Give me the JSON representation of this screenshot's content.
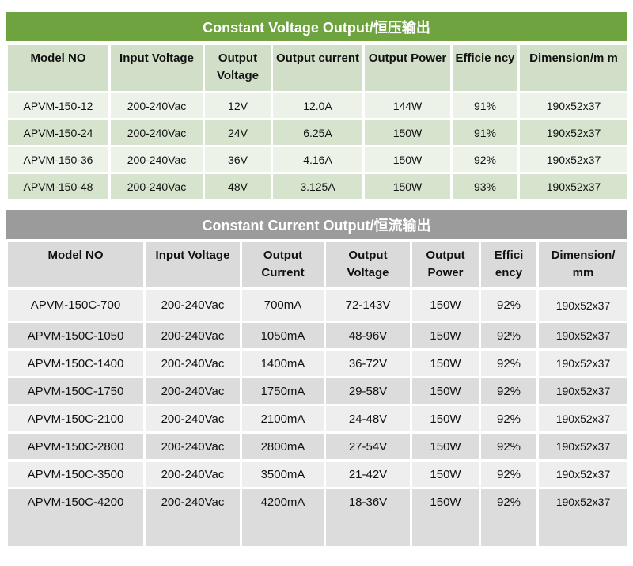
{
  "cv": {
    "title": "Constant Voltage Output/恒压输出",
    "headers": [
      "Model NO",
      "Input Voltage",
      "Output Voltage",
      "Output current",
      "Output Power",
      "Efficie ncy",
      "Dimension/m m"
    ],
    "rows": [
      [
        "APVM-150-12",
        "200-240Vac",
        "12V",
        "12.0A",
        "144W",
        "91%",
        "190x52x37"
      ],
      [
        "APVM-150-24",
        "200-240Vac",
        "24V",
        "6.25A",
        "150W",
        "91%",
        "190x52x37"
      ],
      [
        "APVM-150-36",
        "200-240Vac",
        "36V",
        "4.16A",
        "150W",
        "92%",
        "190x52x37"
      ],
      [
        "APVM-150-48",
        "200-240Vac",
        "48V",
        "3.125A",
        "150W",
        "93%",
        "190x52x37"
      ]
    ]
  },
  "cc": {
    "title": "Constant Current Output/恒流输出",
    "headers": [
      "Model NO",
      "Input Voltage",
      "Output Current",
      "Output Voltage",
      "Output Power",
      "Effici ency",
      "Dimension/ mm"
    ],
    "rows": [
      [
        "APVM-150C-700",
        "200-240Vac",
        "700mA",
        "72-143V",
        "150W",
        "92%",
        "190x52x37"
      ],
      [
        "APVM-150C-1050",
        "200-240Vac",
        "1050mA",
        "48-96V",
        "150W",
        "92%",
        "190x52x37"
      ],
      [
        "APVM-150C-1400",
        "200-240Vac",
        "1400mA",
        "36-72V",
        "150W",
        "92%",
        "190x52x37"
      ],
      [
        "APVM-150C-1750",
        "200-240Vac",
        "1750mA",
        "29-58V",
        "150W",
        "92%",
        "190x52x37"
      ],
      [
        "APVM-150C-2100",
        "200-240Vac",
        "2100mA",
        "24-48V",
        "150W",
        "92%",
        "190x52x37"
      ],
      [
        "APVM-150C-2800",
        "200-240Vac",
        "2800mA",
        "27-54V",
        "150W",
        "92%",
        "190x52x37"
      ],
      [
        "APVM-150C-3500",
        "200-240Vac",
        "3500mA",
        "21-42V",
        "150W",
        "92%",
        "190x52x37"
      ],
      [
        "APVM-150C-4200",
        "200-240Vac",
        "4200mA",
        "18-36V",
        "150W",
        "92%",
        "190x52x37"
      ]
    ]
  },
  "colors": {
    "cv_title_bg": "#6ea340",
    "cc_title_bg": "#9b9b9b"
  }
}
